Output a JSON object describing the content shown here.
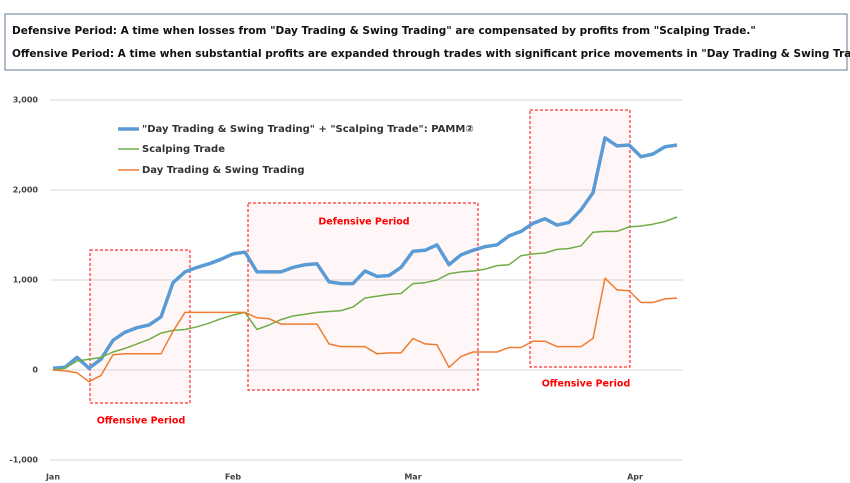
{
  "header": {
    "lines": [
      "Defensive Period: A time when losses from \"Day Trading & Swing Trading\" are compensated by profits from \"Scalping Trade.\"",
      "Offensive Period: A time when substantial profits are expanded through trades with significant price movements in \"Day Trading & Swing Trading.\""
    ]
  },
  "chart_data": {
    "type": "line",
    "x": [
      0,
      2,
      4,
      6,
      8,
      10,
      12,
      14,
      16,
      18,
      20,
      22,
      24,
      26,
      28,
      30,
      32,
      34,
      36,
      38,
      40,
      42,
      44,
      46,
      48,
      50,
      52,
      54,
      56,
      58,
      60,
      62,
      64,
      66,
      68,
      70,
      72,
      74,
      76,
      78,
      80,
      82,
      84,
      86,
      88,
      90,
      92,
      94,
      96,
      98,
      100,
      102,
      104
    ],
    "xlim": [
      0,
      105
    ],
    "xticks": [
      {
        "value": 0,
        "label": "Jan"
      },
      {
        "value": 30,
        "label": "Feb"
      },
      {
        "value": 60,
        "label": "Mar"
      },
      {
        "value": 97,
        "label": "Apr"
      }
    ],
    "ylim": [
      -1000,
      3000
    ],
    "yticks": [
      {
        "value": 3000,
        "label": "3,000"
      },
      {
        "value": 2000,
        "label": "2,000"
      },
      {
        "value": 1000,
        "label": "1,000"
      },
      0,
      {
        "value": -1000,
        "label": "-1,000"
      }
    ],
    "grid": true,
    "series": [
      {
        "name": "\"Day Trading & Swing Trading\" + \"Scalping Trade\": PAMM②",
        "color": "#5b9bd5",
        "values": [
          20,
          30,
          140,
          20,
          120,
          330,
          420,
          470,
          500,
          590,
          970,
          1090,
          1140,
          1180,
          1230,
          1290,
          1310,
          1090,
          1090,
          1090,
          1140,
          1170,
          1180,
          980,
          960,
          960,
          1100,
          1040,
          1050,
          1140,
          1320,
          1330,
          1390,
          1170,
          1280,
          1330,
          1370,
          1390,
          1490,
          1540,
          1630,
          1680,
          1610,
          1640,
          1780,
          1970,
          2580,
          2490,
          2500,
          2370,
          2400,
          2480,
          2500
        ]
      },
      {
        "name": "Scalping Trade",
        "color": "#70ad47",
        "values": [
          0,
          20,
          100,
          120,
          140,
          200,
          240,
          290,
          340,
          410,
          440,
          450,
          480,
          520,
          570,
          610,
          640,
          450,
          500,
          560,
          600,
          620,
          640,
          650,
          660,
          700,
          800,
          820,
          840,
          850,
          960,
          970,
          1000,
          1070,
          1090,
          1100,
          1120,
          1160,
          1170,
          1270,
          1290,
          1300,
          1340,
          1350,
          1380,
          1530,
          1540,
          1540,
          1590,
          1600,
          1620,
          1650,
          1700
        ]
      },
      {
        "name": "Day Trading & Swing Trading",
        "color": "#ed7d31",
        "values": [
          0,
          -10,
          -30,
          -130,
          -60,
          170,
          180,
          180,
          180,
          180,
          430,
          640,
          640,
          640,
          640,
          640,
          640,
          580,
          570,
          510,
          510,
          510,
          510,
          290,
          260,
          260,
          260,
          180,
          190,
          190,
          350,
          290,
          280,
          30,
          150,
          200,
          200,
          200,
          250,
          250,
          320,
          320,
          260,
          260,
          260,
          350,
          1020,
          890,
          880,
          750,
          750,
          790,
          800
        ]
      }
    ],
    "annotations": [
      "Offensive Period",
      "Defensive Period",
      "Offensive Period"
    ],
    "annotation_color": "#ff0000"
  }
}
